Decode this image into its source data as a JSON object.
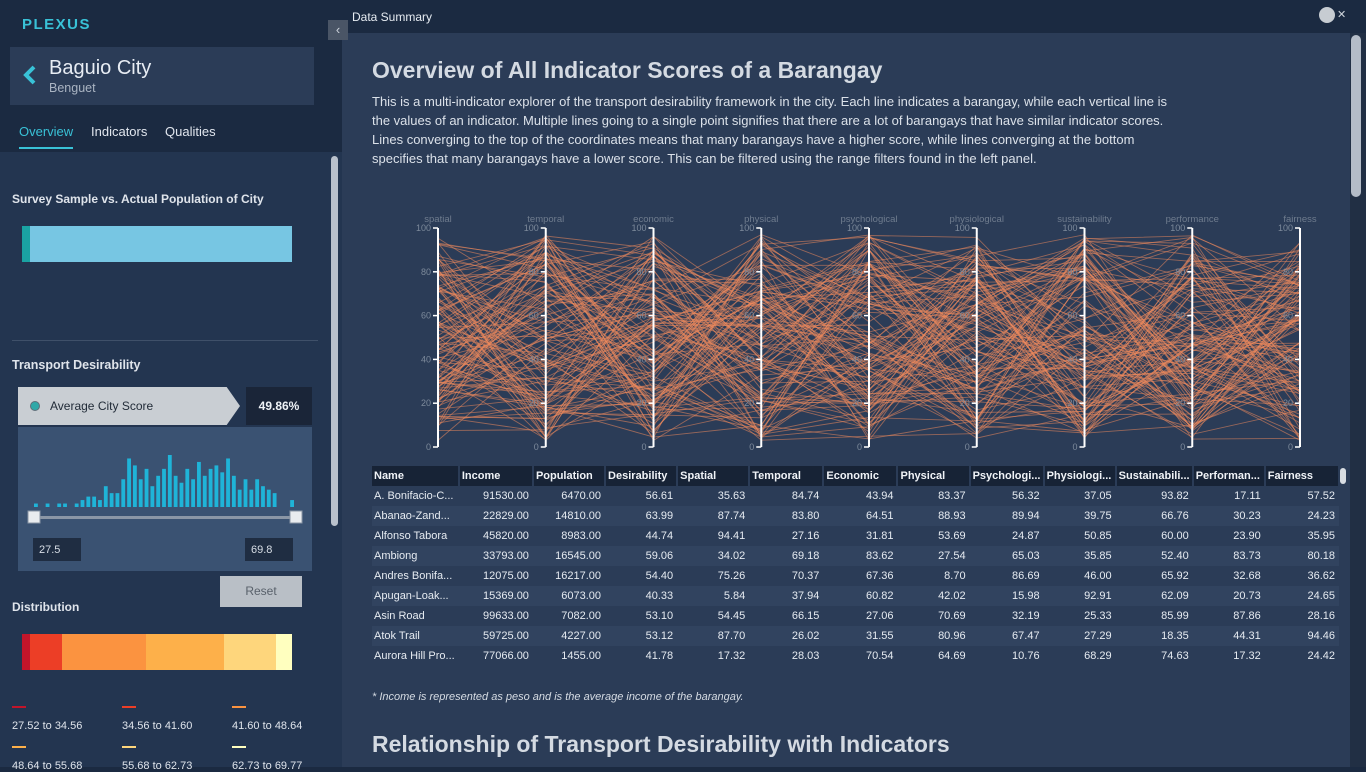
{
  "app": {
    "brand": "PLEXUS"
  },
  "city": {
    "name": "Baguio City",
    "province": "Benguet"
  },
  "tabs": [
    {
      "label": "Overview",
      "active": true
    },
    {
      "label": "Indicators",
      "active": false
    },
    {
      "label": "Qualities",
      "active": false
    }
  ],
  "sidebar": {
    "survey_heading": "Survey Sample vs. Actual Population of City",
    "survey_sample_fraction": 0.03,
    "transport_heading": "Transport Desirability",
    "avg_label": "Average City Score",
    "avg_value": "49.86%",
    "range_min": "27.5",
    "range_max": "69.8",
    "histogram_counts": [
      1,
      0,
      1,
      0,
      1,
      1,
      0,
      1,
      2,
      3,
      3,
      2,
      6,
      4,
      4,
      8,
      14,
      12,
      8,
      11,
      6,
      9,
      11,
      15,
      9,
      7,
      11,
      8,
      13,
      9,
      11,
      12,
      10,
      14,
      9,
      5,
      8,
      5,
      8,
      6,
      5,
      4,
      0,
      0,
      2
    ],
    "reset_label": "Reset",
    "distribution_heading": "Distribution",
    "distribution": [
      {
        "range": "27.52 to 34.56",
        "color": "#c2152a",
        "share": 0.03
      },
      {
        "range": "34.56 to 41.60",
        "color": "#ec3e26",
        "share": 0.12
      },
      {
        "range": "41.60 to 48.64",
        "color": "#fb9340",
        "share": 0.31
      },
      {
        "range": "48.64 to 55.68",
        "color": "#fdb04a",
        "share": 0.29
      },
      {
        "range": "55.68 to 62.73",
        "color": "#fed67c",
        "share": 0.19
      },
      {
        "range": "62.73 to 69.77",
        "color": "#ffffbf",
        "share": 0.06
      }
    ]
  },
  "main": {
    "topbar_title": "Data Summary",
    "overview_title": "Overview of All Indicator Scores of a Barangay",
    "overview_description": "This is a multi-indicator explorer of the transport desirability framework in the city. Each line indicates a barangay, while each vertical line is the values of an indicator. Multiple lines going to a single point signifies that there are a lot of barangays that have similar indicator scores. Lines converging to the top of the coordinates means that many barangays have a higher score, while lines converging at the bottom specifies that many barangays have a lower score. This can be filtered using the range filters found in the left panel.",
    "note": "* Income is represented as peso and is the average income of the barangay.",
    "relationship_title": "Relationship of Transport Desirability with Indicators"
  },
  "chart_data": {
    "type": "line",
    "subtype": "parallel-coordinates",
    "axes": [
      "spatial",
      "temporal",
      "economic",
      "physical",
      "psychological",
      "physiological",
      "sustainability",
      "performance",
      "fairness"
    ],
    "ylim": [
      0,
      100
    ],
    "ticks": [
      0,
      20,
      40,
      60,
      80,
      100
    ],
    "line_color": "#f08a5d",
    "line_count": 129
  },
  "table": {
    "columns": [
      "Name",
      "Income",
      "Population",
      "Desirability",
      "Spatial",
      "Temporal",
      "Economic",
      "Physical",
      "Psychologi...",
      "Physiologi...",
      "Sustainabili...",
      "Performan...",
      "Fairness"
    ],
    "rows": [
      [
        "A. Bonifacio-C...",
        "91530.00",
        "6470.00",
        "56.61",
        "35.63",
        "84.74",
        "43.94",
        "83.37",
        "56.32",
        "37.05",
        "93.82",
        "17.11",
        "57.52"
      ],
      [
        "Abanao-Zand...",
        "22829.00",
        "14810.00",
        "63.99",
        "87.74",
        "83.80",
        "64.51",
        "88.93",
        "89.94",
        "39.75",
        "66.76",
        "30.23",
        "24.23"
      ],
      [
        "Alfonso Tabora",
        "45820.00",
        "8983.00",
        "44.74",
        "94.41",
        "27.16",
        "31.81",
        "53.69",
        "24.87",
        "50.85",
        "60.00",
        "23.90",
        "35.95"
      ],
      [
        "Ambiong",
        "33793.00",
        "16545.00",
        "59.06",
        "34.02",
        "69.18",
        "83.62",
        "27.54",
        "65.03",
        "35.85",
        "52.40",
        "83.73",
        "80.18"
      ],
      [
        "Andres Bonifa...",
        "12075.00",
        "16217.00",
        "54.40",
        "75.26",
        "70.37",
        "67.36",
        "8.70",
        "86.69",
        "46.00",
        "65.92",
        "32.68",
        "36.62"
      ],
      [
        "Apugan-Loak...",
        "15369.00",
        "6073.00",
        "40.33",
        "5.84",
        "37.94",
        "60.82",
        "42.02",
        "15.98",
        "92.91",
        "62.09",
        "20.73",
        "24.65"
      ],
      [
        "Asin Road",
        "99633.00",
        "7082.00",
        "53.10",
        "54.45",
        "66.15",
        "27.06",
        "70.69",
        "32.19",
        "25.33",
        "85.99",
        "87.86",
        "28.16"
      ],
      [
        "Atok Trail",
        "59725.00",
        "4227.00",
        "53.12",
        "87.70",
        "26.02",
        "31.55",
        "80.96",
        "67.47",
        "27.29",
        "18.35",
        "44.31",
        "94.46"
      ],
      [
        "Aurora Hill Pro...",
        "77066.00",
        "1455.00",
        "41.78",
        "17.32",
        "28.03",
        "70.54",
        "64.69",
        "10.76",
        "68.29",
        "74.63",
        "17.32",
        "24.42"
      ]
    ]
  }
}
